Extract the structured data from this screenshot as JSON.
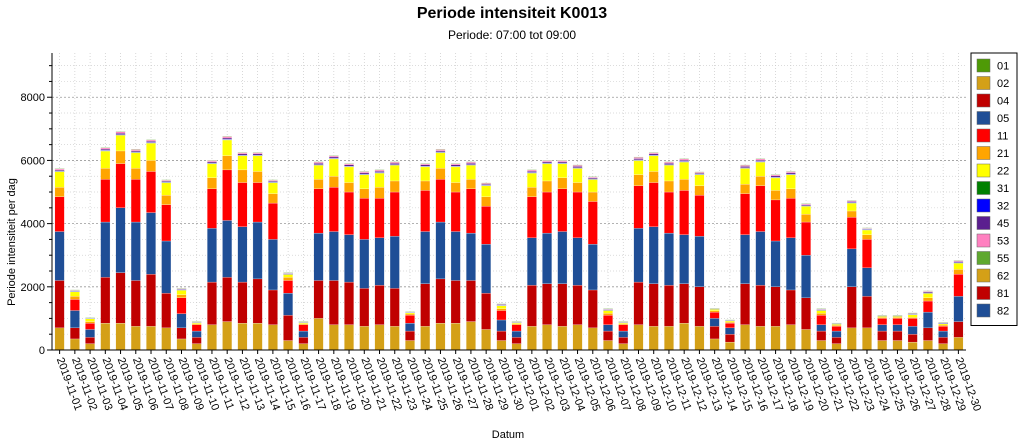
{
  "chart_data": {
    "type": "bar",
    "stacked": true,
    "title": "Periode intensiteit K0013",
    "subtitle": "Periode: 07:00 tot 09:00",
    "xlabel": "Datum",
    "ylabel": "Periode intensiteit per dag",
    "ylim": [
      0,
      9400
    ],
    "yticks": [
      0,
      2000,
      4000,
      6000,
      8000
    ],
    "grid": true,
    "legend_position": "right",
    "categories": [
      "2019-11-01",
      "2019-11-02",
      "2019-11-03",
      "2019-11-04",
      "2019-11-05",
      "2019-11-06",
      "2019-11-07",
      "2019-11-08",
      "2019-11-09",
      "2019-11-10",
      "2019-11-11",
      "2019-11-12",
      "2019-11-13",
      "2019-11-14",
      "2019-11-15",
      "2019-11-16",
      "2019-11-17",
      "2019-11-18",
      "2019-11-19",
      "2019-11-20",
      "2019-11-21",
      "2019-11-22",
      "2019-11-23",
      "2019-11-24",
      "2019-11-25",
      "2019-11-26",
      "2019-11-27",
      "2019-11-28",
      "2019-11-29",
      "2019-11-30",
      "2019-12-01",
      "2019-12-02",
      "2019-12-03",
      "2019-12-04",
      "2019-12-05",
      "2019-12-06",
      "2019-12-07",
      "2019-12-08",
      "2019-12-09",
      "2019-12-10",
      "2019-12-11",
      "2019-12-12",
      "2019-12-13",
      "2019-12-14",
      "2019-12-15",
      "2019-12-16",
      "2019-12-17",
      "2019-12-18",
      "2019-12-19",
      "2019-12-20",
      "2019-12-21",
      "2019-12-22",
      "2019-12-23",
      "2019-12-24",
      "2019-12-25",
      "2019-12-26",
      "2019-12-27",
      "2019-12-28",
      "2019-12-29",
      "2019-12-30"
    ],
    "series": [
      {
        "name": "01",
        "color": "#4e9a06",
        "values": [
          0,
          0,
          0,
          0,
          0,
          0,
          0,
          0,
          0,
          0,
          0,
          0,
          0,
          0,
          0,
          0,
          0,
          0,
          0,
          0,
          0,
          0,
          0,
          0,
          0,
          0,
          0,
          0,
          0,
          0,
          0,
          0,
          0,
          0,
          0,
          0,
          0,
          0,
          0,
          0,
          0,
          0,
          0,
          0,
          0,
          0,
          0,
          0,
          0,
          0,
          0,
          0,
          0,
          0,
          0,
          0,
          0,
          0,
          0,
          0
        ]
      },
      {
        "name": "02",
        "color": "#d4a017",
        "values": [
          0,
          0,
          0,
          0,
          0,
          0,
          0,
          0,
          0,
          0,
          0,
          0,
          0,
          0,
          0,
          0,
          0,
          0,
          0,
          0,
          0,
          0,
          0,
          0,
          0,
          0,
          0,
          0,
          0,
          0,
          0,
          0,
          0,
          0,
          0,
          0,
          0,
          0,
          0,
          0,
          0,
          0,
          0,
          0,
          0,
          0,
          0,
          0,
          0,
          0,
          0,
          0,
          0,
          0,
          0,
          0,
          0,
          0,
          0,
          0
        ]
      },
      {
        "name": "04",
        "color": "#c00000",
        "values": [
          0,
          0,
          0,
          0,
          0,
          0,
          0,
          0,
          0,
          0,
          0,
          0,
          0,
          0,
          0,
          0,
          0,
          0,
          0,
          0,
          0,
          0,
          0,
          0,
          0,
          0,
          0,
          0,
          0,
          0,
          0,
          0,
          0,
          0,
          0,
          0,
          0,
          0,
          0,
          0,
          0,
          0,
          0,
          0,
          0,
          0,
          0,
          0,
          0,
          0,
          0,
          0,
          0,
          0,
          0,
          0,
          0,
          0,
          0,
          0
        ]
      },
      {
        "name": "05",
        "color": "#1f4e96",
        "values": [
          0,
          0,
          0,
          0,
          0,
          0,
          0,
          0,
          0,
          0,
          0,
          0,
          0,
          0,
          0,
          0,
          0,
          0,
          0,
          0,
          0,
          0,
          0,
          0,
          0,
          0,
          0,
          0,
          0,
          0,
          0,
          0,
          0,
          0,
          0,
          0,
          0,
          0,
          0,
          0,
          0,
          0,
          0,
          0,
          0,
          0,
          0,
          0,
          0,
          0,
          0,
          0,
          0,
          0,
          0,
          0,
          0,
          0,
          0,
          0
        ]
      },
      {
        "name": "62",
        "color": "#d4a017",
        "values": [
          700,
          350,
          200,
          850,
          850,
          750,
          750,
          700,
          350,
          200,
          800,
          900,
          850,
          850,
          800,
          300,
          200,
          1000,
          800,
          800,
          750,
          800,
          750,
          300,
          750,
          850,
          850,
          900,
          650,
          300,
          200,
          750,
          800,
          750,
          800,
          700,
          300,
          200,
          800,
          750,
          750,
          850,
          750,
          350,
          250,
          800,
          750,
          750,
          800,
          650,
          300,
          200,
          700,
          700,
          300,
          300,
          250,
          300,
          200,
          400
        ]
      },
      {
        "name": "81",
        "color": "#c00000",
        "values": [
          1500,
          350,
          200,
          1450,
          1600,
          1450,
          1650,
          1100,
          350,
          200,
          1350,
          1400,
          1300,
          1400,
          1100,
          800,
          200,
          1200,
          1400,
          1350,
          1200,
          1250,
          1200,
          300,
          1350,
          1400,
          1350,
          1300,
          1150,
          300,
          200,
          1300,
          1300,
          1350,
          1250,
          1200,
          300,
          200,
          1350,
          1350,
          1300,
          1250,
          1250,
          400,
          250,
          1300,
          1300,
          1250,
          1100,
          1000,
          300,
          200,
          1300,
          1000,
          300,
          300,
          250,
          400,
          200,
          500
        ]
      },
      {
        "name": "82",
        "color": "#1f4e96",
        "values": [
          1550,
          550,
          250,
          1750,
          2050,
          1850,
          1950,
          1650,
          450,
          200,
          1700,
          1800,
          1750,
          1800,
          1600,
          700,
          200,
          1500,
          1550,
          1500,
          1550,
          1500,
          1650,
          250,
          1650,
          1800,
          1550,
          1500,
          1550,
          350,
          200,
          1500,
          1600,
          1650,
          1500,
          1450,
          200,
          200,
          1700,
          1800,
          1650,
          1550,
          1600,
          250,
          200,
          1550,
          1700,
          1450,
          1650,
          1350,
          200,
          200,
          1200,
          900,
          200,
          200,
          250,
          500,
          200,
          800
        ]
      },
      {
        "name": "11",
        "color": "#ff0000",
        "values": [
          1100,
          350,
          200,
          1350,
          1400,
          1350,
          1300,
          1150,
          500,
          200,
          1250,
          1600,
          1400,
          1250,
          1150,
          400,
          200,
          1400,
          1400,
          1350,
          1300,
          1250,
          1400,
          250,
          1300,
          1350,
          1250,
          1400,
          1200,
          300,
          200,
          1300,
          1300,
          1350,
          1450,
          1350,
          300,
          200,
          1350,
          1400,
          1300,
          1400,
          1300,
          200,
          150,
          1300,
          1450,
          1300,
          1250,
          1050,
          300,
          150,
          1000,
          900,
          200,
          200,
          250,
          350,
          150,
          700
        ]
      },
      {
        "name": "21",
        "color": "#ffa500",
        "values": [
          300,
          100,
          50,
          350,
          400,
          350,
          350,
          300,
          100,
          30,
          350,
          450,
          400,
          350,
          300,
          100,
          30,
          300,
          350,
          300,
          300,
          350,
          350,
          40,
          300,
          350,
          300,
          300,
          300,
          60,
          30,
          300,
          350,
          350,
          300,
          300,
          60,
          30,
          350,
          350,
          350,
          350,
          300,
          40,
          30,
          300,
          300,
          300,
          300,
          250,
          60,
          30,
          200,
          150,
          30,
          30,
          30,
          100,
          40,
          150
        ]
      },
      {
        "name": "22",
        "color": "#ffff00",
        "values": [
          500,
          150,
          100,
          550,
          500,
          500,
          550,
          400,
          150,
          50,
          450,
          500,
          450,
          500,
          350,
          100,
          50,
          450,
          550,
          500,
          450,
          450,
          500,
          50,
          450,
          500,
          500,
          450,
          350,
          100,
          50,
          450,
          550,
          450,
          450,
          400,
          100,
          50,
          450,
          500,
          500,
          550,
          350,
          60,
          50,
          500,
          450,
          400,
          450,
          250,
          100,
          50,
          250,
          150,
          50,
          50,
          100,
          150,
          50,
          200
        ]
      },
      {
        "name": "31",
        "color": "#008000",
        "values": [
          10,
          5,
          2,
          10,
          10,
          10,
          10,
          10,
          5,
          2,
          10,
          10,
          10,
          10,
          10,
          5,
          2,
          10,
          10,
          10,
          10,
          10,
          10,
          2,
          10,
          10,
          10,
          10,
          10,
          5,
          2,
          10,
          10,
          10,
          10,
          10,
          5,
          2,
          10,
          10,
          10,
          10,
          10,
          2,
          2,
          10,
          10,
          10,
          10,
          10,
          5,
          2,
          10,
          10,
          2,
          2,
          2,
          5,
          2,
          10
        ]
      },
      {
        "name": "32",
        "color": "#0000ff",
        "values": [
          10,
          5,
          2,
          10,
          10,
          10,
          10,
          10,
          5,
          2,
          10,
          10,
          10,
          10,
          10,
          5,
          2,
          10,
          10,
          10,
          10,
          10,
          10,
          2,
          10,
          10,
          10,
          10,
          10,
          5,
          2,
          10,
          10,
          10,
          10,
          10,
          5,
          2,
          10,
          10,
          10,
          10,
          10,
          2,
          2,
          10,
          10,
          10,
          10,
          10,
          5,
          2,
          10,
          10,
          2,
          2,
          2,
          5,
          2,
          10
        ]
      },
      {
        "name": "45",
        "color": "#5b1f8f",
        "values": [
          30,
          20,
          10,
          40,
          40,
          40,
          40,
          30,
          20,
          10,
          40,
          40,
          40,
          40,
          30,
          20,
          10,
          40,
          40,
          40,
          40,
          40,
          40,
          10,
          40,
          40,
          40,
          40,
          30,
          20,
          10,
          40,
          40,
          40,
          40,
          30,
          20,
          10,
          40,
          40,
          40,
          40,
          30,
          10,
          10,
          40,
          40,
          40,
          40,
          30,
          20,
          10,
          30,
          20,
          10,
          10,
          20,
          30,
          20,
          30
        ]
      },
      {
        "name": "53",
        "color": "#ff80c0",
        "values": [
          40,
          20,
          10,
          40,
          50,
          40,
          40,
          30,
          20,
          10,
          40,
          50,
          40,
          40,
          30,
          20,
          10,
          40,
          40,
          40,
          40,
          40,
          40,
          10,
          40,
          40,
          40,
          40,
          30,
          20,
          10,
          40,
          40,
          40,
          40,
          30,
          20,
          10,
          40,
          40,
          40,
          40,
          30,
          10,
          10,
          40,
          40,
          40,
          40,
          30,
          20,
          10,
          30,
          20,
          10,
          10,
          20,
          30,
          20,
          30
        ]
      },
      {
        "name": "55",
        "color": "#5fa82e",
        "values": [
          10,
          5,
          2,
          10,
          10,
          10,
          10,
          10,
          5,
          2,
          10,
          10,
          10,
          10,
          10,
          5,
          2,
          10,
          10,
          10,
          10,
          10,
          10,
          2,
          10,
          10,
          10,
          10,
          10,
          5,
          2,
          10,
          10,
          10,
          10,
          10,
          5,
          2,
          10,
          10,
          10,
          10,
          10,
          2,
          2,
          10,
          10,
          10,
          10,
          10,
          5,
          2,
          10,
          10,
          2,
          2,
          2,
          5,
          2,
          10
        ]
      }
    ]
  }
}
